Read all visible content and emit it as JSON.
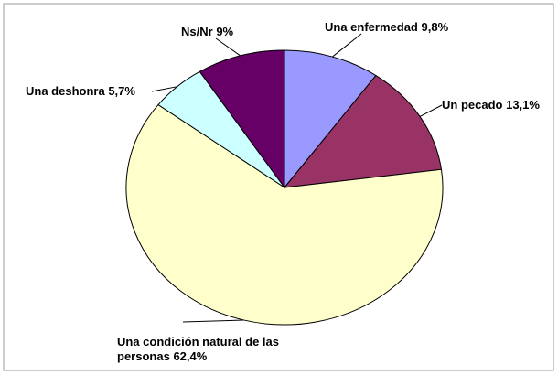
{
  "chart_data": {
    "type": "pie",
    "categories": [
      "Una enfermedad",
      "Un pecado",
      "Una condición natural de las personas",
      "Una deshonra",
      "Ns/Nr"
    ],
    "values": [
      9.8,
      13.1,
      62.4,
      5.7,
      9
    ],
    "value_labels": [
      "9,8%",
      "13,1%",
      "62,4%",
      "5,7%",
      "9%"
    ],
    "colors": [
      "#9999ff",
      "#993366",
      "#ffffcc",
      "#ccffff",
      "#660066"
    ]
  }
}
